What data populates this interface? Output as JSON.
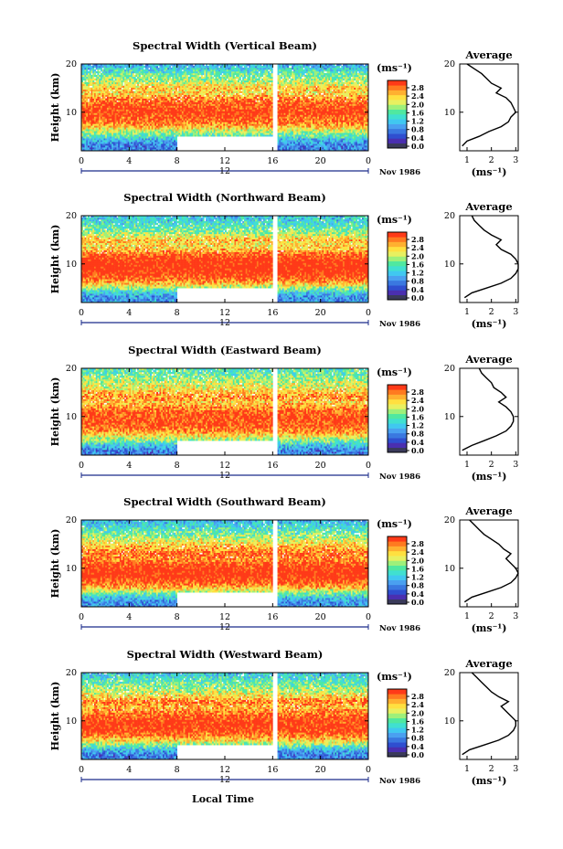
{
  "chart_data": {
    "type": "heatmap",
    "x_axis_label": "Local Time",
    "month_label": "Nov 1986",
    "day_marker": "12",
    "x_ticks": [
      "0",
      "4",
      "8",
      "12",
      "16",
      "20",
      "0"
    ],
    "xlim_hours": [
      0,
      24
    ],
    "y_axis_label": "Height (km)",
    "y_ticks": [
      "10",
      "20"
    ],
    "ylim_km": [
      2,
      20
    ],
    "colorbar": {
      "unit": "(ms⁻¹)",
      "ticks": [
        "2.8",
        "2.4",
        "2.0",
        "1.6",
        "1.2",
        "0.8",
        "0.4",
        "0.0"
      ],
      "range": [
        0,
        3.0
      ],
      "colors": [
        "#3a3a5a",
        "#4a2fb0",
        "#2f4fd0",
        "#3a78e0",
        "#4aa0f0",
        "#40c8f0",
        "#40e0d0",
        "#50e8a0",
        "#9ef07a",
        "#e8f060",
        "#ffe040",
        "#ffb030",
        "#ff7a20",
        "#ff3a18"
      ]
    },
    "average_panel": {
      "title": "Average",
      "x_ticks": [
        "1",
        "2",
        "3"
      ],
      "xlim": [
        0.7,
        3.1
      ],
      "unit": "(ms⁻¹)",
      "y_ticks": [
        "10",
        "20"
      ],
      "ylim_km": [
        2,
        20
      ]
    },
    "data_gaps": [
      {
        "from_hour": 16,
        "to_hour": 16.4,
        "heights_km": "all"
      },
      {
        "from_hour": 8,
        "to_hour": 16,
        "heights_km": "below ~4"
      }
    ],
    "panels": [
      {
        "title": "Spectral Width (Vertical Beam)",
        "average_profile": {
          "height_km": [
            3,
            4,
            5,
            6,
            7,
            8,
            9,
            10,
            11,
            12,
            13,
            14,
            15,
            16,
            17,
            18,
            19,
            20
          ],
          "width": [
            0.8,
            1.0,
            1.5,
            1.9,
            2.4,
            2.7,
            2.8,
            3.0,
            2.9,
            2.8,
            2.6,
            2.2,
            2.4,
            2.0,
            1.8,
            1.6,
            1.3,
            1.0
          ]
        }
      },
      {
        "title": "Spectral Width (Northward Beam)",
        "average_profile": {
          "height_km": [
            3,
            4,
            5,
            6,
            7,
            8,
            9,
            10,
            11,
            12,
            13,
            14,
            15,
            16,
            17,
            18,
            19,
            20
          ],
          "width": [
            0.9,
            1.2,
            1.8,
            2.4,
            2.8,
            3.0,
            3.1,
            3.1,
            3.0,
            2.8,
            2.4,
            2.2,
            2.4,
            2.0,
            1.7,
            1.5,
            1.3,
            1.2
          ]
        }
      },
      {
        "title": "Spectral Width (Eastward Beam)",
        "average_profile": {
          "height_km": [
            3,
            4,
            5,
            6,
            7,
            8,
            9,
            10,
            11,
            12,
            13,
            14,
            15,
            16,
            17,
            18,
            19,
            20
          ],
          "width": [
            0.8,
            1.2,
            1.7,
            2.2,
            2.6,
            2.8,
            2.9,
            2.9,
            2.8,
            2.6,
            2.3,
            2.6,
            2.4,
            2.1,
            2.0,
            1.8,
            1.6,
            1.5
          ]
        }
      },
      {
        "title": "Spectral Width (Southward Beam)",
        "average_profile": {
          "height_km": [
            3,
            4,
            5,
            6,
            7,
            8,
            9,
            10,
            11,
            12,
            13,
            14,
            15,
            16,
            17,
            18,
            19,
            20
          ],
          "width": [
            0.9,
            1.2,
            1.8,
            2.4,
            2.8,
            3.0,
            3.1,
            3.0,
            2.8,
            2.6,
            2.8,
            2.5,
            2.3,
            2.0,
            1.7,
            1.5,
            1.3,
            1.1
          ]
        }
      },
      {
        "title": "Spectral Width (Westward Beam)",
        "average_profile": {
          "height_km": [
            3,
            4,
            5,
            6,
            7,
            8,
            9,
            10,
            11,
            12,
            13,
            14,
            15,
            16,
            17,
            18,
            19,
            20
          ],
          "width": [
            0.8,
            1.1,
            1.7,
            2.3,
            2.7,
            2.9,
            3.0,
            3.0,
            2.8,
            2.6,
            2.4,
            2.7,
            2.3,
            2.0,
            1.8,
            1.6,
            1.4,
            1.2
          ]
        }
      }
    ]
  }
}
